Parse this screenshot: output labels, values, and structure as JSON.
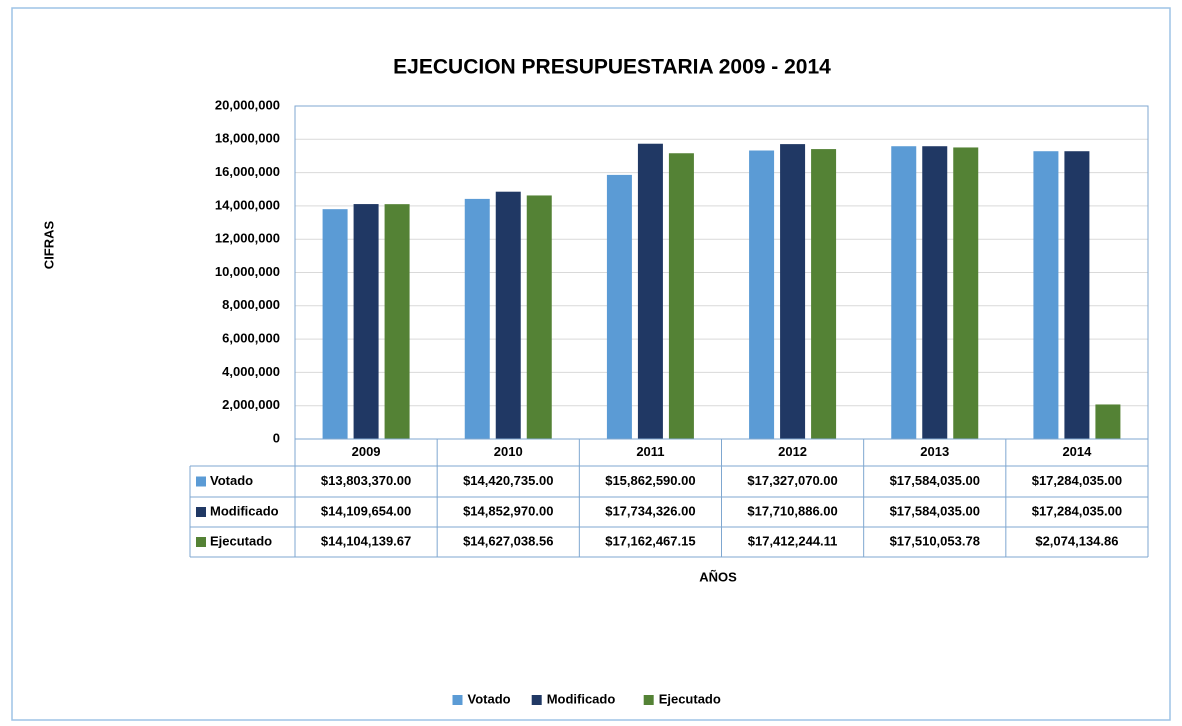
{
  "chart_data": {
    "type": "bar",
    "title": "EJECUCION PRESUPUESTARIA 2009 - 2014",
    "x_label": "AÑOS",
    "y_label": "CIFRAS",
    "categories": [
      "2009",
      "2010",
      "2011",
      "2012",
      "2013",
      "2014"
    ],
    "series": [
      {
        "name": "Votado",
        "color": "#5b9bd5",
        "values": [
          13803370.0,
          14420735.0,
          15862590.0,
          17327070.0,
          17584035.0,
          17284035.0
        ],
        "value_labels": [
          "$13,803,370.00",
          "$14,420,735.00",
          "$15,862,590.00",
          "$17,327,070.00",
          "$17,584,035.00",
          "$17,284,035.00"
        ]
      },
      {
        "name": "Modificado",
        "color": "#203864",
        "values": [
          14109654.0,
          14852970.0,
          17734326.0,
          17710886.0,
          17584035.0,
          17284035.0
        ],
        "value_labels": [
          "$14,109,654.00",
          "$14,852,970.00",
          "$17,734,326.00",
          "$17,710,886.00",
          "$17,584,035.00",
          "$17,284,035.00"
        ]
      },
      {
        "name": "Ejecutado",
        "color": "#548235",
        "values": [
          14104139.67,
          14627038.56,
          17162467.15,
          17412244.11,
          17510053.78,
          2074134.86
        ],
        "value_labels": [
          "$14,104,139.67",
          "$14,627,038.56",
          "$17,162,467.15",
          "$17,412,244.11",
          "$17,510,053.78",
          "$2,074,134.86"
        ]
      }
    ],
    "ylim": [
      0,
      20000000
    ],
    "yticks": [
      0,
      {
        "value": 2000000,
        "label": "2,000,000"
      },
      {
        "value": 4000000,
        "label": "4,000,000"
      },
      {
        "value": 6000000,
        "label": "6,000,000"
      },
      {
        "value": 8000000,
        "label": "8,000,000"
      },
      {
        "value": 10000000,
        "label": "10,000,000"
      },
      {
        "value": 12000000,
        "label": "12,000,000"
      },
      {
        "value": 14000000,
        "label": "14,000,000"
      },
      {
        "value": 16000000,
        "label": "16,000,000"
      },
      {
        "value": 18000000,
        "label": "18,000,000"
      },
      {
        "value": 20000000,
        "label": "20,000,000"
      }
    ],
    "grid": true,
    "legend": "bottom"
  }
}
